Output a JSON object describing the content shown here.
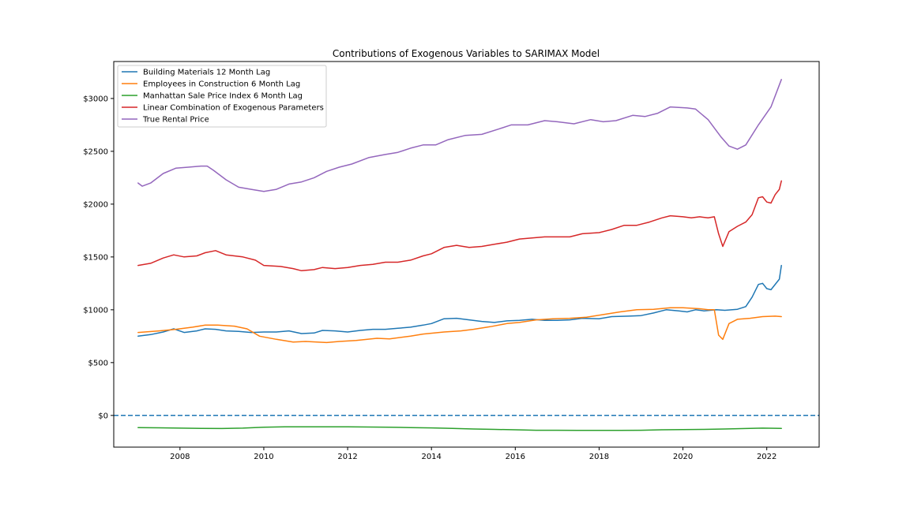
{
  "chart_data": {
    "type": "line",
    "title": "Contributions of Exogenous Variables to SARIMAX Model",
    "xlabel": "",
    "ylabel": "",
    "xlim": [
      2006.42,
      2023.25
    ],
    "ylim": [
      -300,
      3350
    ],
    "x_ticks": [
      2008,
      2010,
      2012,
      2014,
      2016,
      2018,
      2020,
      2022
    ],
    "x_tick_labels": [
      "2008",
      "2010",
      "2012",
      "2014",
      "2016",
      "2018",
      "2020",
      "2022"
    ],
    "y_ticks": [
      0,
      500,
      1000,
      1500,
      2000,
      2500,
      3000
    ],
    "y_tick_labels": [
      "$0",
      "$500",
      "$1000",
      "$1500",
      "$2000",
      "$2500",
      "$3000"
    ],
    "grid": false,
    "legend_position": "upper-left",
    "reference_line": {
      "y": 0,
      "style": "dashed",
      "color": "#1f77b4"
    },
    "series": [
      {
        "name": "Building Materials 12 Month Lag",
        "color": "#1f77b4",
        "points": [
          [
            2007.0,
            750
          ],
          [
            2007.3,
            765
          ],
          [
            2007.6,
            790
          ],
          [
            2007.85,
            820
          ],
          [
            2008.1,
            785
          ],
          [
            2008.4,
            800
          ],
          [
            2008.6,
            820
          ],
          [
            2008.85,
            815
          ],
          [
            2009.1,
            800
          ],
          [
            2009.4,
            795
          ],
          [
            2009.7,
            785
          ],
          [
            2010.0,
            790
          ],
          [
            2010.3,
            790
          ],
          [
            2010.6,
            800
          ],
          [
            2010.9,
            775
          ],
          [
            2011.2,
            780
          ],
          [
            2011.4,
            805
          ],
          [
            2011.7,
            800
          ],
          [
            2012.0,
            790
          ],
          [
            2012.3,
            805
          ],
          [
            2012.6,
            815
          ],
          [
            2012.9,
            815
          ],
          [
            2013.2,
            825
          ],
          [
            2013.5,
            835
          ],
          [
            2013.8,
            855
          ],
          [
            2014.0,
            870
          ],
          [
            2014.3,
            915
          ],
          [
            2014.6,
            920
          ],
          [
            2014.9,
            905
          ],
          [
            2015.2,
            890
          ],
          [
            2015.5,
            880
          ],
          [
            2015.8,
            895
          ],
          [
            2016.1,
            900
          ],
          [
            2016.4,
            910
          ],
          [
            2016.7,
            900
          ],
          [
            2017.0,
            900
          ],
          [
            2017.3,
            905
          ],
          [
            2017.6,
            920
          ],
          [
            2018.0,
            915
          ],
          [
            2018.3,
            935
          ],
          [
            2018.7,
            940
          ],
          [
            2019.0,
            945
          ],
          [
            2019.3,
            970
          ],
          [
            2019.6,
            1000
          ],
          [
            2019.9,
            990
          ],
          [
            2020.1,
            980
          ],
          [
            2020.3,
            1000
          ],
          [
            2020.5,
            990
          ],
          [
            2020.8,
            1000
          ],
          [
            2021.0,
            995
          ],
          [
            2021.3,
            1005
          ],
          [
            2021.5,
            1030
          ],
          [
            2021.65,
            1120
          ],
          [
            2021.8,
            1240
          ],
          [
            2021.9,
            1250
          ],
          [
            2022.0,
            1200
          ],
          [
            2022.1,
            1190
          ],
          [
            2022.3,
            1290
          ],
          [
            2022.35,
            1420
          ]
        ]
      },
      {
        "name": "Employees in Construction 6 Month Lag",
        "color": "#ff7f0e",
        "points": [
          [
            2007.0,
            785
          ],
          [
            2007.5,
            800
          ],
          [
            2007.9,
            815
          ],
          [
            2008.3,
            835
          ],
          [
            2008.6,
            855
          ],
          [
            2008.9,
            855
          ],
          [
            2009.3,
            845
          ],
          [
            2009.6,
            820
          ],
          [
            2009.9,
            750
          ],
          [
            2010.3,
            720
          ],
          [
            2010.7,
            695
          ],
          [
            2011.0,
            700
          ],
          [
            2011.5,
            690
          ],
          [
            2011.8,
            700
          ],
          [
            2012.2,
            710
          ],
          [
            2012.7,
            730
          ],
          [
            2013.0,
            725
          ],
          [
            2013.5,
            750
          ],
          [
            2013.8,
            770
          ],
          [
            2014.3,
            790
          ],
          [
            2014.7,
            800
          ],
          [
            2015.0,
            815
          ],
          [
            2015.4,
            840
          ],
          [
            2015.8,
            870
          ],
          [
            2016.1,
            880
          ],
          [
            2016.5,
            905
          ],
          [
            2016.9,
            915
          ],
          [
            2017.3,
            920
          ],
          [
            2017.7,
            930
          ],
          [
            2018.1,
            955
          ],
          [
            2018.5,
            980
          ],
          [
            2018.9,
            1000
          ],
          [
            2019.3,
            1005
          ],
          [
            2019.7,
            1020
          ],
          [
            2020.0,
            1020
          ],
          [
            2020.4,
            1010
          ],
          [
            2020.6,
            1000
          ],
          [
            2020.75,
            1000
          ],
          [
            2020.85,
            760
          ],
          [
            2020.95,
            720
          ],
          [
            2021.1,
            870
          ],
          [
            2021.3,
            910
          ],
          [
            2021.6,
            920
          ],
          [
            2021.9,
            935
          ],
          [
            2022.2,
            940
          ],
          [
            2022.35,
            935
          ]
        ]
      },
      {
        "name": "Manhattan Sale Price Index 6 Month Lag",
        "color": "#2ca02c",
        "points": [
          [
            2007.0,
            -115
          ],
          [
            2007.5,
            -117
          ],
          [
            2008.0,
            -120
          ],
          [
            2008.5,
            -122
          ],
          [
            2009.0,
            -124
          ],
          [
            2009.5,
            -120
          ],
          [
            2010.0,
            -112
          ],
          [
            2010.5,
            -108
          ],
          [
            2011.0,
            -108
          ],
          [
            2011.5,
            -108
          ],
          [
            2012.0,
            -108
          ],
          [
            2012.5,
            -110
          ],
          [
            2013.0,
            -112
          ],
          [
            2013.5,
            -115
          ],
          [
            2014.0,
            -118
          ],
          [
            2014.5,
            -122
          ],
          [
            2015.0,
            -128
          ],
          [
            2015.5,
            -132
          ],
          [
            2016.0,
            -136
          ],
          [
            2016.5,
            -140
          ],
          [
            2017.0,
            -140
          ],
          [
            2017.5,
            -141
          ],
          [
            2018.0,
            -142
          ],
          [
            2018.5,
            -142
          ],
          [
            2019.0,
            -140
          ],
          [
            2019.5,
            -136
          ],
          [
            2020.0,
            -134
          ],
          [
            2020.5,
            -132
          ],
          [
            2021.0,
            -128
          ],
          [
            2021.5,
            -124
          ],
          [
            2021.9,
            -120
          ],
          [
            2022.35,
            -123
          ]
        ]
      },
      {
        "name": "Linear Combination of Exogenous Parameters",
        "color": "#d62728",
        "points": [
          [
            2007.0,
            1420
          ],
          [
            2007.3,
            1440
          ],
          [
            2007.6,
            1490
          ],
          [
            2007.85,
            1520
          ],
          [
            2008.1,
            1500
          ],
          [
            2008.4,
            1510
          ],
          [
            2008.6,
            1540
          ],
          [
            2008.85,
            1560
          ],
          [
            2009.1,
            1520
          ],
          [
            2009.5,
            1500
          ],
          [
            2009.8,
            1470
          ],
          [
            2010.0,
            1420
          ],
          [
            2010.4,
            1410
          ],
          [
            2010.7,
            1390
          ],
          [
            2010.9,
            1370
          ],
          [
            2011.2,
            1380
          ],
          [
            2011.4,
            1400
          ],
          [
            2011.7,
            1390
          ],
          [
            2012.0,
            1400
          ],
          [
            2012.3,
            1420
          ],
          [
            2012.6,
            1430
          ],
          [
            2012.9,
            1450
          ],
          [
            2013.2,
            1450
          ],
          [
            2013.5,
            1470
          ],
          [
            2013.8,
            1510
          ],
          [
            2014.0,
            1530
          ],
          [
            2014.3,
            1590
          ],
          [
            2014.6,
            1610
          ],
          [
            2014.9,
            1590
          ],
          [
            2015.2,
            1600
          ],
          [
            2015.5,
            1620
          ],
          [
            2015.8,
            1640
          ],
          [
            2016.1,
            1670
          ],
          [
            2016.4,
            1680
          ],
          [
            2016.7,
            1690
          ],
          [
            2017.0,
            1690
          ],
          [
            2017.3,
            1690
          ],
          [
            2017.6,
            1720
          ],
          [
            2018.0,
            1730
          ],
          [
            2018.3,
            1760
          ],
          [
            2018.6,
            1800
          ],
          [
            2018.9,
            1800
          ],
          [
            2019.2,
            1830
          ],
          [
            2019.5,
            1870
          ],
          [
            2019.7,
            1890
          ],
          [
            2020.0,
            1880
          ],
          [
            2020.2,
            1870
          ],
          [
            2020.4,
            1880
          ],
          [
            2020.6,
            1870
          ],
          [
            2020.75,
            1880
          ],
          [
            2020.85,
            1720
          ],
          [
            2020.95,
            1600
          ],
          [
            2021.1,
            1740
          ],
          [
            2021.3,
            1790
          ],
          [
            2021.5,
            1830
          ],
          [
            2021.65,
            1900
          ],
          [
            2021.8,
            2060
          ],
          [
            2021.9,
            2070
          ],
          [
            2022.0,
            2020
          ],
          [
            2022.1,
            2010
          ],
          [
            2022.2,
            2090
          ],
          [
            2022.3,
            2140
          ],
          [
            2022.35,
            2220
          ]
        ]
      },
      {
        "name": "True Rental Price",
        "color": "#9467bd",
        "points": [
          [
            2007.0,
            2200
          ],
          [
            2007.1,
            2170
          ],
          [
            2007.3,
            2200
          ],
          [
            2007.6,
            2290
          ],
          [
            2007.9,
            2340
          ],
          [
            2008.2,
            2350
          ],
          [
            2008.5,
            2360
          ],
          [
            2008.65,
            2360
          ],
          [
            2008.8,
            2320
          ],
          [
            2009.1,
            2230
          ],
          [
            2009.4,
            2160
          ],
          [
            2009.7,
            2140
          ],
          [
            2010.0,
            2120
          ],
          [
            2010.3,
            2140
          ],
          [
            2010.6,
            2190
          ],
          [
            2010.9,
            2210
          ],
          [
            2011.2,
            2250
          ],
          [
            2011.5,
            2310
          ],
          [
            2011.8,
            2350
          ],
          [
            2012.1,
            2380
          ],
          [
            2012.5,
            2440
          ],
          [
            2012.9,
            2470
          ],
          [
            2013.2,
            2490
          ],
          [
            2013.5,
            2530
          ],
          [
            2013.8,
            2560
          ],
          [
            2014.1,
            2560
          ],
          [
            2014.4,
            2610
          ],
          [
            2014.8,
            2650
          ],
          [
            2015.2,
            2660
          ],
          [
            2015.6,
            2710
          ],
          [
            2015.9,
            2750
          ],
          [
            2016.3,
            2750
          ],
          [
            2016.7,
            2790
          ],
          [
            2017.0,
            2780
          ],
          [
            2017.4,
            2760
          ],
          [
            2017.8,
            2800
          ],
          [
            2018.1,
            2780
          ],
          [
            2018.4,
            2790
          ],
          [
            2018.8,
            2840
          ],
          [
            2019.1,
            2830
          ],
          [
            2019.4,
            2860
          ],
          [
            2019.7,
            2920
          ],
          [
            2020.1,
            2910
          ],
          [
            2020.3,
            2900
          ],
          [
            2020.6,
            2800
          ],
          [
            2020.9,
            2640
          ],
          [
            2021.1,
            2550
          ],
          [
            2021.3,
            2520
          ],
          [
            2021.5,
            2560
          ],
          [
            2021.8,
            2750
          ],
          [
            2022.1,
            2920
          ],
          [
            2022.35,
            3180
          ]
        ]
      }
    ]
  }
}
